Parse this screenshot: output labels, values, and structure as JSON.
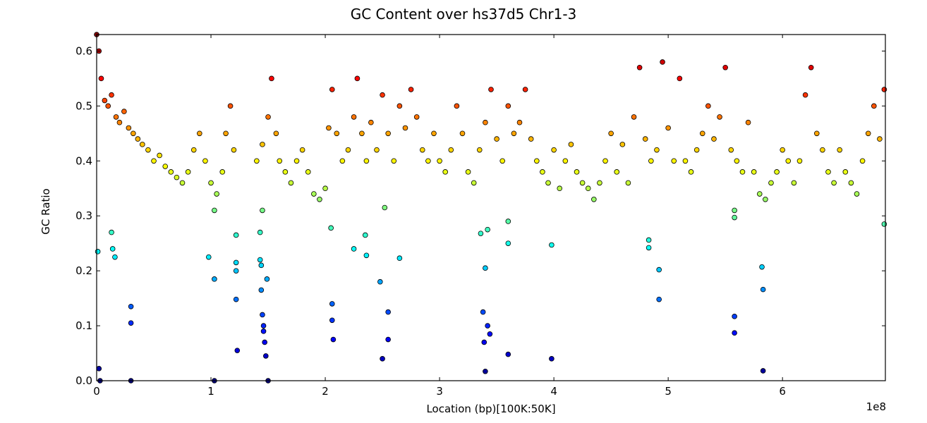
{
  "chart_data": {
    "type": "scatter",
    "title": "GC Content over hs37d5 Chr1-3",
    "xlabel": "Location (bp)[100K:50K]",
    "ylabel": "GC Ratio",
    "x_exponent_label": "1e8",
    "xlim": [
      0,
      6.9
    ],
    "ylim": [
      0,
      0.63
    ],
    "x_ticks": [
      0,
      1,
      2,
      3,
      4,
      5,
      6
    ],
    "x_tick_labels": [
      "0",
      "1",
      "2",
      "3",
      "4",
      "5",
      "6"
    ],
    "y_ticks": [
      0.0,
      0.1,
      0.2,
      0.3,
      0.4,
      0.5,
      0.6
    ],
    "y_tick_labels": [
      "0.0",
      "0.1",
      "0.2",
      "0.3",
      "0.4",
      "0.5",
      "0.6"
    ],
    "grid": false,
    "legend": "none",
    "colormap": "jet",
    "color_scale_range": [
      0,
      0.63
    ],
    "series": [
      {
        "x": [
          0.0,
          0.02,
          0.04,
          0.07,
          0.1,
          0.13,
          0.17,
          0.2,
          0.24,
          0.28,
          0.32,
          0.36,
          0.4,
          0.45,
          0.5,
          0.55,
          0.6,
          0.65,
          0.7,
          0.75,
          0.8,
          0.85,
          0.9,
          0.95,
          1.0,
          1.05,
          1.1,
          1.13,
          1.17,
          1.2,
          1.4,
          1.45,
          1.5,
          1.53,
          1.57,
          1.6,
          1.65,
          1.7,
          1.75,
          1.8,
          1.85,
          1.9,
          1.95,
          2.0,
          2.03,
          2.06,
          2.1,
          2.15,
          2.2,
          2.25,
          2.28,
          2.32,
          2.36,
          2.4,
          2.45,
          2.5,
          2.55,
          2.6,
          2.65,
          2.7,
          2.75,
          2.8,
          2.85,
          2.9,
          2.95,
          3.0,
          3.05,
          3.1,
          3.15,
          3.2,
          3.25,
          3.3,
          3.35,
          3.4,
          3.45,
          3.5,
          3.55,
          3.6,
          3.65,
          3.7,
          3.75,
          3.8,
          3.85,
          3.9,
          3.95,
          4.0,
          4.05,
          4.1,
          4.15,
          4.2,
          4.25,
          4.3,
          4.35,
          4.4,
          4.45,
          4.5,
          4.55,
          4.6,
          4.65,
          4.7,
          4.75,
          4.8,
          4.85,
          4.9,
          4.95,
          5.0,
          5.05,
          5.1,
          5.15,
          5.2,
          5.25,
          5.3,
          5.35,
          5.4,
          5.45,
          5.5,
          5.55,
          5.6,
          5.65,
          5.7,
          5.75,
          5.8,
          5.85,
          5.9,
          5.95,
          6.0,
          6.05,
          6.1,
          6.15,
          6.2,
          6.25,
          6.3,
          6.35,
          6.4,
          6.45,
          6.5,
          6.55,
          6.6,
          6.65,
          6.7,
          6.75,
          6.8,
          6.85,
          6.89
        ],
        "y": [
          0.63,
          0.6,
          0.55,
          0.51,
          0.5,
          0.52,
          0.48,
          0.47,
          0.49,
          0.46,
          0.45,
          0.44,
          0.43,
          0.42,
          0.4,
          0.41,
          0.39,
          0.38,
          0.37,
          0.36,
          0.38,
          0.42,
          0.45,
          0.4,
          0.36,
          0.34,
          0.38,
          0.45,
          0.5,
          0.42,
          0.4,
          0.43,
          0.48,
          0.55,
          0.45,
          0.4,
          0.38,
          0.36,
          0.4,
          0.42,
          0.38,
          0.34,
          0.33,
          0.35,
          0.46,
          0.53,
          0.45,
          0.4,
          0.42,
          0.48,
          0.55,
          0.45,
          0.4,
          0.47,
          0.42,
          0.52,
          0.45,
          0.4,
          0.5,
          0.46,
          0.53,
          0.48,
          0.42,
          0.4,
          0.45,
          0.4,
          0.38,
          0.42,
          0.5,
          0.45,
          0.38,
          0.36,
          0.42,
          0.47,
          0.53,
          0.44,
          0.4,
          0.5,
          0.45,
          0.47,
          0.53,
          0.44,
          0.4,
          0.38,
          0.36,
          0.42,
          0.35,
          0.4,
          0.43,
          0.38,
          0.36,
          0.35,
          0.33,
          0.36,
          0.4,
          0.45,
          0.38,
          0.43,
          0.36,
          0.48,
          0.57,
          0.44,
          0.4,
          0.42,
          0.58,
          0.46,
          0.4,
          0.55,
          0.4,
          0.38,
          0.42,
          0.45,
          0.5,
          0.44,
          0.48,
          0.57,
          0.42,
          0.4,
          0.38,
          0.47,
          0.38,
          0.34,
          0.33,
          0.36,
          0.38,
          0.42,
          0.4,
          0.36,
          0.4,
          0.52,
          0.57,
          0.45,
          0.42,
          0.38,
          0.36,
          0.42,
          0.38,
          0.36,
          0.34,
          0.4,
          0.45,
          0.5,
          0.44,
          0.53
        ]
      },
      {
        "x": [
          0.01,
          0.02,
          0.03,
          0.13,
          0.14,
          0.16,
          0.3,
          0.3,
          0.3,
          0.98,
          1.03,
          1.03,
          1.03,
          1.22,
          1.22,
          1.22,
          1.22,
          1.23,
          1.43,
          1.43,
          1.44,
          1.44,
          1.45,
          1.45,
          1.46,
          1.46,
          1.47,
          1.48,
          1.49,
          1.5,
          2.05,
          2.06,
          2.06,
          2.07,
          2.25,
          2.35,
          2.36,
          2.48,
          2.5,
          2.52,
          2.55,
          2.55,
          2.65,
          3.36,
          3.38,
          3.39,
          3.4,
          3.4,
          3.42,
          3.42,
          3.44,
          3.6,
          3.6,
          3.6,
          3.98,
          3.98,
          4.83,
          4.83,
          4.92,
          4.92,
          5.58,
          5.58,
          5.58,
          5.58,
          5.82,
          5.83,
          5.83,
          6.89
        ],
        "y": [
          0.235,
          0.022,
          0.0,
          0.27,
          0.24,
          0.225,
          0.135,
          0.105,
          0.0,
          0.225,
          0.185,
          0.31,
          0.0,
          0.265,
          0.215,
          0.2,
          0.148,
          0.055,
          0.27,
          0.22,
          0.21,
          0.165,
          0.31,
          0.12,
          0.1,
          0.09,
          0.07,
          0.045,
          0.185,
          0.0,
          0.278,
          0.14,
          0.11,
          0.075,
          0.24,
          0.265,
          0.228,
          0.18,
          0.04,
          0.315,
          0.125,
          0.075,
          0.223,
          0.268,
          0.125,
          0.07,
          0.017,
          0.205,
          0.1,
          0.275,
          0.085,
          0.29,
          0.25,
          0.048,
          0.247,
          0.04,
          0.256,
          0.242,
          0.202,
          0.148,
          0.31,
          0.297,
          0.117,
          0.087,
          0.207,
          0.018,
          0.166,
          0.285
        ]
      }
    ]
  }
}
